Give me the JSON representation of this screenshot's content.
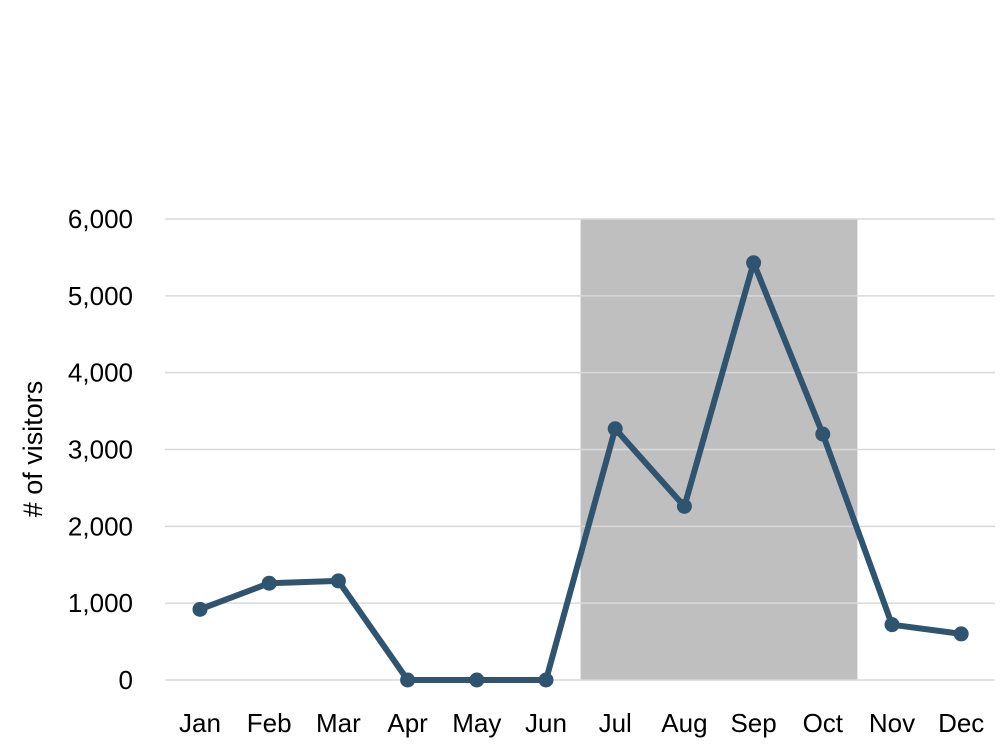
{
  "chart_data": {
    "type": "line",
    "title": "",
    "xlabel": "",
    "ylabel": "# of visitors",
    "categories": [
      "Jan",
      "Feb",
      "Mar",
      "Apr",
      "May",
      "Jun",
      "Jul",
      "Aug",
      "Sep",
      "Oct",
      "Nov",
      "Dec"
    ],
    "series": [
      {
        "values": [
          920,
          1260,
          1290,
          0,
          0,
          0,
          3270,
          2260,
          5430,
          3200,
          720,
          600
        ]
      }
    ],
    "ylim": [
      0,
      6000
    ],
    "yticks": [
      0,
      1000,
      2000,
      3000,
      4000,
      5000,
      6000
    ],
    "ytick_labels": [
      "0",
      "1,000",
      "2,000",
      "3,000",
      "4,000",
      "5,000",
      "6,000"
    ],
    "grid": true,
    "legend": "none",
    "highlight": {
      "from": "Jul",
      "to": "Oct",
      "color": "#bfbfbf"
    },
    "line_color": "#2f5470",
    "grid_color": "#d9d9d9"
  }
}
